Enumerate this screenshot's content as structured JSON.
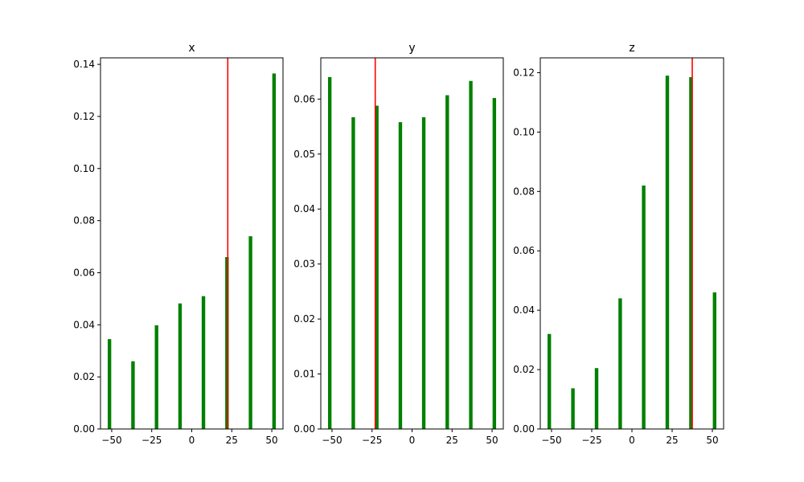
{
  "colors": {
    "bar": "#008000",
    "marker_line": "#ff0000",
    "axes": "#000000",
    "background": "#ffffff"
  },
  "chart_data": [
    {
      "type": "bar",
      "title": "x",
      "xlabel": "",
      "ylabel": "",
      "x": [
        -51.4,
        -36.7,
        -22.0,
        -7.3,
        7.3,
        22.0,
        36.7,
        51.4
      ],
      "values": [
        0.0345,
        0.026,
        0.0398,
        0.0482,
        0.051,
        0.066,
        0.074,
        0.1365
      ],
      "xlim": [
        -57,
        57
      ],
      "ylim": [
        0,
        0.1425
      ],
      "xticks": [
        -50,
        -25,
        0,
        25,
        50
      ],
      "xtick_labels": [
        "−50",
        "−25",
        "0",
        "25",
        "50"
      ],
      "yticks": [
        0,
        0.02,
        0.04,
        0.06,
        0.08,
        0.1,
        0.12,
        0.14
      ],
      "ytick_labels": [
        "0.00",
        "0.02",
        "0.04",
        "0.06",
        "0.08",
        "0.10",
        "0.12",
        "0.14"
      ],
      "marker_x": 22.5,
      "grid": false
    },
    {
      "type": "bar",
      "title": "y",
      "xlabel": "",
      "ylabel": "",
      "x": [
        -51.4,
        -36.7,
        -22.0,
        -7.3,
        7.3,
        22.0,
        36.7,
        51.4
      ],
      "values": [
        0.064,
        0.0567,
        0.0588,
        0.0558,
        0.0567,
        0.0607,
        0.0633,
        0.0602
      ],
      "xlim": [
        -57,
        57
      ],
      "ylim": [
        0,
        0.0675
      ],
      "xticks": [
        -50,
        -25,
        0,
        25,
        50
      ],
      "xtick_labels": [
        "−50",
        "−25",
        "0",
        "25",
        "50"
      ],
      "yticks": [
        0,
        0.01,
        0.02,
        0.03,
        0.04,
        0.05,
        0.06
      ],
      "ytick_labels": [
        "0.00",
        "0.01",
        "0.02",
        "0.03",
        "0.04",
        "0.05",
        "0.06"
      ],
      "marker_x": -23,
      "grid": false
    },
    {
      "type": "bar",
      "title": "z",
      "xlabel": "",
      "ylabel": "",
      "x": [
        -51.4,
        -36.7,
        -22.0,
        -7.3,
        7.3,
        22.0,
        36.7,
        51.4
      ],
      "values": [
        0.032,
        0.0137,
        0.0205,
        0.044,
        0.082,
        0.119,
        0.1185,
        0.046
      ],
      "xlim": [
        -57,
        57
      ],
      "ylim": [
        0,
        0.125
      ],
      "xticks": [
        -50,
        -25,
        0,
        25,
        50
      ],
      "xtick_labels": [
        "−50",
        "−25",
        "0",
        "25",
        "50"
      ],
      "yticks": [
        0,
        0.02,
        0.04,
        0.06,
        0.08,
        0.1,
        0.12
      ],
      "ytick_labels": [
        "0.00",
        "0.02",
        "0.04",
        "0.06",
        "0.08",
        "0.10",
        "0.12"
      ],
      "marker_x": 37.5,
      "grid": false
    }
  ]
}
